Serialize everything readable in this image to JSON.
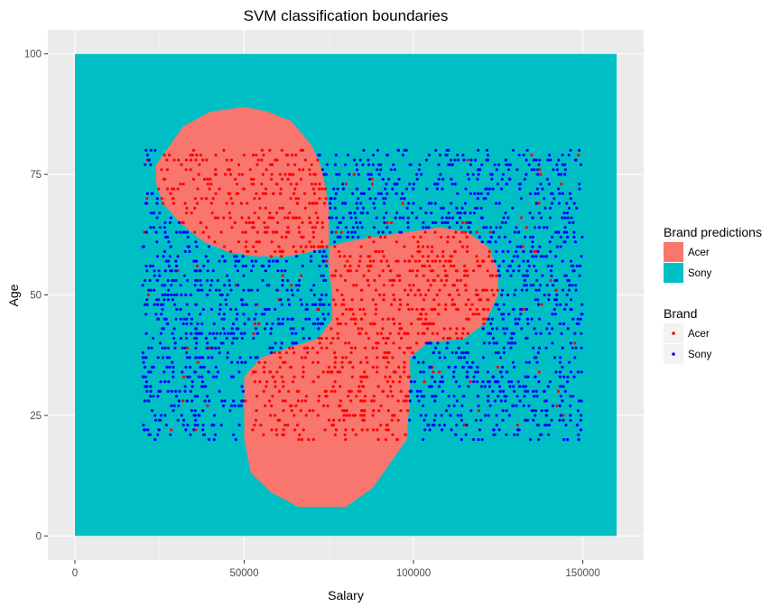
{
  "chart_data": {
    "type": "scatter",
    "title": "SVM classification boundaries",
    "xlabel": "Salary",
    "ylabel": "Age",
    "xlim": [
      -8000,
      168000
    ],
    "ylim": [
      -5,
      105
    ],
    "x_ticks": [
      0,
      50000,
      100000,
      150000
    ],
    "x_tick_labels": [
      "0",
      "50000",
      "100000",
      "150000"
    ],
    "y_ticks": [
      0,
      25,
      50,
      75,
      100
    ],
    "y_tick_labels": [
      "0",
      "25",
      "50",
      "75",
      "100"
    ],
    "grid": true,
    "legend_position": "right",
    "background_region": {
      "label": "Sony",
      "x_range": [
        0,
        160000
      ],
      "y_range": [
        0,
        100
      ],
      "color": "#00BFC4"
    },
    "prediction_regions": [
      {
        "label": "Acer",
        "color": "#F8766D",
        "polygon": [
          [
            27000,
            80
          ],
          [
            32000,
            85
          ],
          [
            40000,
            88
          ],
          [
            50000,
            89
          ],
          [
            57000,
            88
          ],
          [
            64000,
            86
          ],
          [
            70000,
            81
          ],
          [
            73000,
            76
          ],
          [
            75000,
            68
          ],
          [
            75000,
            60
          ],
          [
            70000,
            59
          ],
          [
            63000,
            58
          ],
          [
            53000,
            58
          ],
          [
            45000,
            59
          ],
          [
            38000,
            61
          ],
          [
            31000,
            65
          ],
          [
            26000,
            69
          ],
          [
            24000,
            73
          ],
          [
            24000,
            77
          ]
        ]
      },
      {
        "label": "Acer",
        "color": "#F8766D",
        "polygon": [
          [
            75000,
            60
          ],
          [
            75000,
            55
          ],
          [
            76000,
            50
          ],
          [
            76000,
            45
          ],
          [
            72000,
            41
          ],
          [
            63000,
            39
          ],
          [
            55000,
            37
          ],
          [
            50000,
            33
          ],
          [
            50000,
            20
          ],
          [
            52000,
            13
          ],
          [
            58000,
            9
          ],
          [
            66000,
            6
          ],
          [
            80000,
            6
          ],
          [
            88000,
            10
          ],
          [
            94000,
            16
          ],
          [
            98000,
            20
          ],
          [
            99000,
            30
          ],
          [
            99000,
            37
          ],
          [
            104000,
            40
          ],
          [
            115000,
            41
          ],
          [
            121000,
            44
          ],
          [
            125000,
            50
          ],
          [
            125000,
            55
          ],
          [
            122000,
            60
          ],
          [
            116000,
            63
          ],
          [
            108000,
            64
          ],
          [
            98000,
            63
          ],
          [
            88000,
            62
          ],
          [
            80000,
            61
          ]
        ]
      }
    ],
    "series": [
      {
        "name": "Acer",
        "color": "#FF0000"
      },
      {
        "name": "Sony",
        "color": "#0000FF"
      }
    ],
    "scatter_x_range": [
      20000,
      150000
    ],
    "scatter_y_range": [
      20,
      80
    ],
    "legends": [
      {
        "title": "Brand predictions",
        "entries": [
          {
            "label": "Acer",
            "color": "#F8766D",
            "symbol": "square"
          },
          {
            "label": "Sony",
            "color": "#00BFC4",
            "symbol": "square"
          }
        ]
      },
      {
        "title": "Brand",
        "entries": [
          {
            "label": "Acer",
            "color": "#FF0000",
            "symbol": "point"
          },
          {
            "label": "Sony",
            "color": "#0000FF",
            "symbol": "point"
          }
        ]
      }
    ]
  }
}
